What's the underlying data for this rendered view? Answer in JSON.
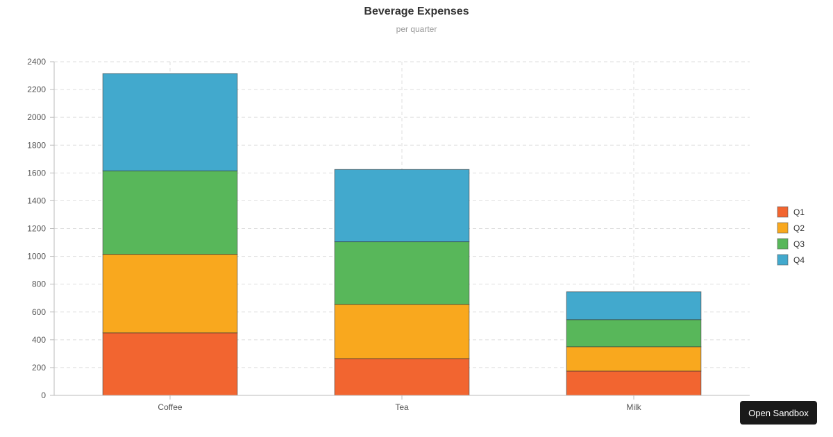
{
  "chart_data": {
    "type": "bar",
    "stacked": true,
    "title": "Beverage Expenses",
    "subtitle": "per quarter",
    "categories": [
      "Coffee",
      "Tea",
      "Milk"
    ],
    "series": [
      {
        "name": "Q1",
        "color": "#F26530",
        "values": [
          450,
          265,
          175
        ]
      },
      {
        "name": "Q2",
        "color": "#F9A81E",
        "values": [
          565,
          390,
          175
        ]
      },
      {
        "name": "Q3",
        "color": "#58B75A",
        "values": [
          600,
          450,
          195
        ]
      },
      {
        "name": "Q4",
        "color": "#42A9CD",
        "values": [
          700,
          520,
          200
        ]
      }
    ],
    "yticks": [
      0,
      200,
      400,
      600,
      800,
      1000,
      1200,
      1400,
      1600,
      1800,
      2000,
      2200,
      2400
    ],
    "ylim": [
      0,
      2400
    ],
    "grid": true,
    "legend_position": "right"
  },
  "sandbox": {
    "label": "Open Sandbox"
  }
}
